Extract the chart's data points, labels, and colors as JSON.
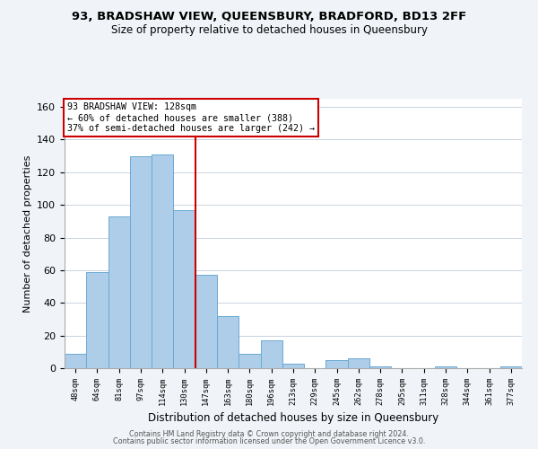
{
  "title1": "93, BRADSHAW VIEW, QUEENSBURY, BRADFORD, BD13 2FF",
  "title2": "Size of property relative to detached houses in Queensbury",
  "xlabel": "Distribution of detached houses by size in Queensbury",
  "ylabel": "Number of detached properties",
  "bar_labels": [
    "48sqm",
    "64sqm",
    "81sqm",
    "97sqm",
    "114sqm",
    "130sqm",
    "147sqm",
    "163sqm",
    "180sqm",
    "196sqm",
    "213sqm",
    "229sqm",
    "245sqm",
    "262sqm",
    "278sqm",
    "295sqm",
    "311sqm",
    "328sqm",
    "344sqm",
    "361sqm",
    "377sqm"
  ],
  "bar_values": [
    9,
    59,
    93,
    130,
    131,
    97,
    57,
    32,
    9,
    17,
    3,
    0,
    5,
    6,
    1,
    0,
    0,
    1,
    0,
    0,
    1
  ],
  "bar_color": "#aecde8",
  "bar_edge_color": "#6aaad4",
  "vline_color": "#cc0000",
  "annotation_text": "93 BRADSHAW VIEW: 128sqm\n← 60% of detached houses are smaller (388)\n37% of semi-detached houses are larger (242) →",
  "annotation_box_edge": "#cc0000",
  "ylim": [
    0,
    165
  ],
  "yticks": [
    0,
    20,
    40,
    60,
    80,
    100,
    120,
    140,
    160
  ],
  "footer1": "Contains HM Land Registry data © Crown copyright and database right 2024.",
  "footer2": "Contains public sector information licensed under the Open Government Licence v3.0.",
  "bg_color": "#f0f4f8",
  "plot_bg_color": "#ffffff",
  "grid_color": "#c8d4e0"
}
